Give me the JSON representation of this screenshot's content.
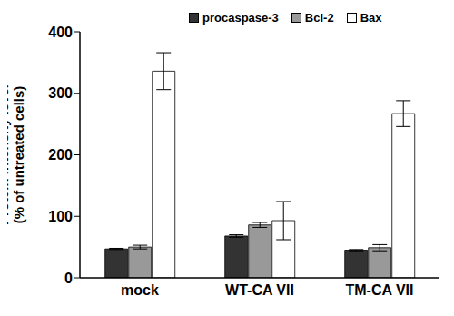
{
  "chart_data": {
    "type": "bar",
    "y_label": "Protein intensity level\n(% of untreated cells)",
    "categories": [
      "mock",
      "WT-CA VII",
      "TM-CA VII"
    ],
    "series": [
      {
        "name": "procaspase-3",
        "color": "#333333",
        "values": [
          47,
          68,
          45
        ],
        "errors": [
          1,
          2,
          1
        ]
      },
      {
        "name": "Bcl-2",
        "color": "#999999",
        "values": [
          50,
          86,
          49
        ],
        "errors": [
          3,
          4,
          5
        ]
      },
      {
        "name": "Bax",
        "color": "#ffffff",
        "values": [
          336,
          93,
          267
        ],
        "errors": [
          30,
          31,
          21
        ]
      }
    ],
    "ylim": [
      0,
      400
    ],
    "yticks": [
      0,
      100,
      200,
      300,
      400
    ],
    "grid": false,
    "legend": "top"
  }
}
